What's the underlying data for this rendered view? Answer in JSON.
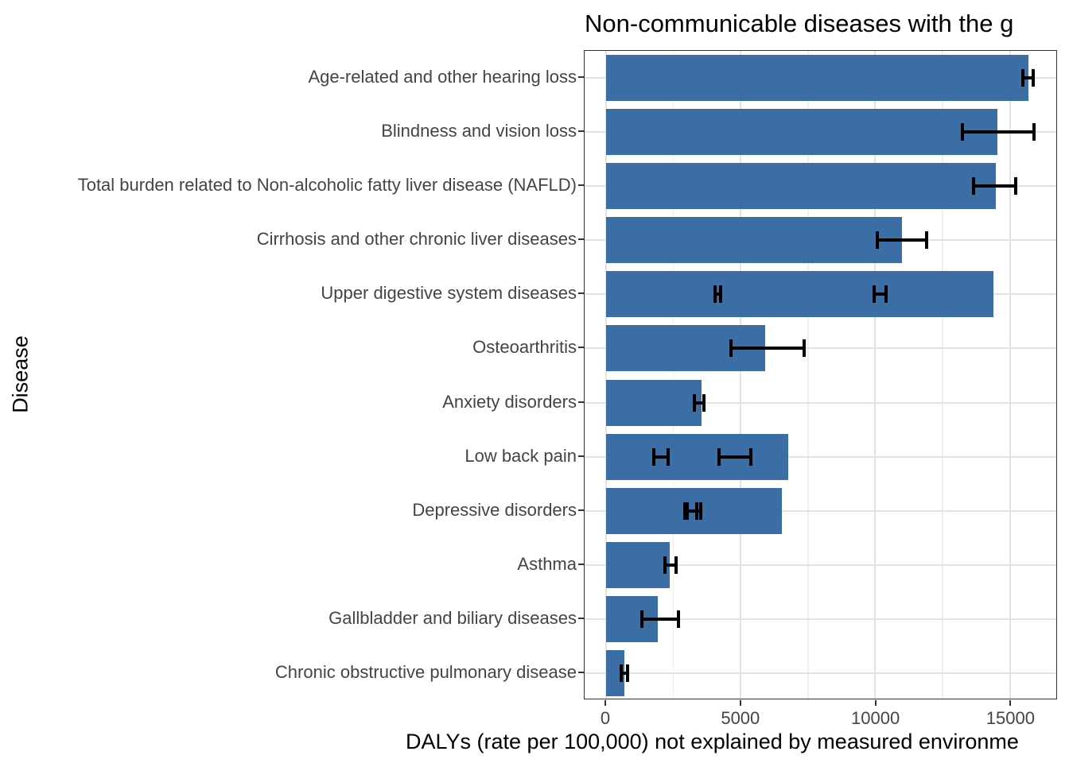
{
  "title": "Non-communicable diseases with the g",
  "x_axis_title": "DALYs (rate per 100,000) not explained by measured environme",
  "y_axis_title": "Disease",
  "chart_data": {
    "type": "bar",
    "orientation": "horizontal",
    "title": "Non-communicable diseases with the g",
    "xlabel": "DALYs (rate per 100,000) not explained by measured environme",
    "ylabel": "Disease",
    "categories": [
      "Age-related and other hearing loss",
      "Blindness and vision loss",
      "Total burden related to Non-alcoholic fatty liver disease (NAFLD)",
      "Cirrhosis and other chronic liver diseases",
      "Upper digestive system diseases",
      "Osteoarthritis",
      "Anxiety disorders",
      "Low back pain",
      "Depressive disorders",
      "Asthma",
      "Gallbladder and biliary diseases",
      "Chronic obstructive pulmonary disease"
    ],
    "values": [
      15700,
      14540,
      14480,
      11000,
      14380,
      5910,
      3540,
      6770,
      6520,
      2380,
      1920,
      690
    ],
    "error_bars": [
      [
        [
          15420,
          15940
        ]
      ],
      [
        [
          13170,
          15960
        ]
      ],
      [
        [
          13600,
          15290
        ]
      ],
      [
        [
          10020,
          11980
        ]
      ],
      [
        [
          4000,
          4310
        ],
        [
          9890,
          10450
        ]
      ],
      [
        [
          4590,
          7430
        ]
      ],
      [
        [
          3210,
          3700
        ]
      ],
      [
        [
          1720,
          2380
        ],
        [
          4150,
          5440
        ]
      ],
      [
        [
          2870,
          3440
        ],
        [
          2970,
          3580
        ]
      ],
      [
        [
          2140,
          2650
        ]
      ],
      [
        [
          1270,
          2740
        ]
      ],
      [
        [
          490,
          860
        ]
      ]
    ],
    "x_ticks": [
      0,
      5000,
      10000,
      15000
    ],
    "x_tick_labels": [
      "0",
      "5000",
      "10000",
      "15000"
    ],
    "x_minor_ticks": [
      2500,
      7500,
      12500
    ],
    "xlim": [
      -796,
      16726
    ],
    "grid": true,
    "legend": "none",
    "colors": {
      "bar_fill": "#3B6EA5",
      "error_bar": "#000000",
      "grid_major": "#e3e3e3",
      "grid_minor": "#efefef",
      "panel_border": "#333333",
      "tick_label": "#444444",
      "title_text": "#000000"
    }
  }
}
